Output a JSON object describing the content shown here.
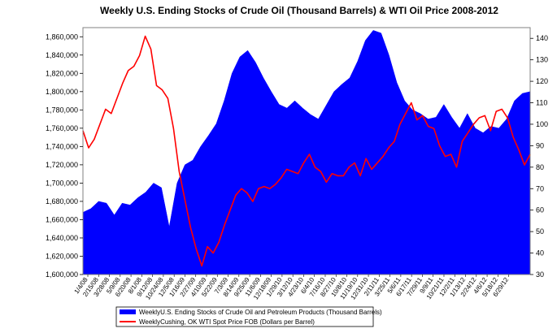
{
  "chart_data": {
    "type": "area+line",
    "title": "Weekly U.S. Ending Stocks of Crude Oil  (Thousand Barrels) & WTI Oil Price 2008-2012",
    "left_axis": {
      "min": 1600000,
      "max": 1870000,
      "ticks": [
        1600000,
        1620000,
        1640000,
        1660000,
        1680000,
        1700000,
        1720000,
        1740000,
        1760000,
        1780000,
        1800000,
        1820000,
        1840000,
        1860000
      ],
      "tick_labels": [
        "1,600,000",
        "1,620,000",
        "1,640,000",
        "1,660,000",
        "1,680,000",
        "1,700,000",
        "1,720,000",
        "1,740,000",
        "1,760,000",
        "1,780,000",
        "1,800,000",
        "1,820,000",
        "1,840,000",
        "1,860,000"
      ]
    },
    "right_axis": {
      "min": 30,
      "max": 145,
      "ticks": [
        30,
        40,
        50,
        60,
        70,
        80,
        90,
        100,
        110,
        120,
        130,
        140
      ],
      "tick_labels": [
        "30",
        "40",
        "50",
        "60",
        "70",
        "80",
        "90",
        "100",
        "110",
        "120",
        "130",
        "140"
      ]
    },
    "x_labels": [
      "1/4/08",
      "2/15/08",
      "3/28/08",
      "5/9/08",
      "6/20/08",
      "8/1/08",
      "9/12/08",
      "10/24/08",
      "12/5/08",
      "1/16/09",
      "2/27/09",
      "4/10/09",
      "5/22/09",
      "7/3/09",
      "8/14/09",
      "9/25/09",
      "11/6/09",
      "12/18/09",
      "1/29/10",
      "3/12/10",
      "4/23/10",
      "6/4/10",
      "7/16/10",
      "8/27/10",
      "10/8/10",
      "11/19/10",
      "12/31/10",
      "2/11/11",
      "3/25/11",
      "5/6/11",
      "6/17/11",
      "7/29/11",
      "9/9/11",
      "10/21/11",
      "12/2/11",
      "1/13/12",
      "2/24/12",
      "4/6/12",
      "5/18/12",
      "6/29/12"
    ],
    "series": [
      {
        "name": "WeeklyU.S. Ending Stocks of Crude Oil and Petroleum Products  (Thousand Barrels)",
        "type": "area",
        "axis": "left",
        "color": "#0000ff",
        "values": [
          1668000,
          1672000,
          1680000,
          1678000,
          1665000,
          1678000,
          1676000,
          1684000,
          1690000,
          1700000,
          1695000,
          1652000,
          1700000,
          1720000,
          1725000,
          1740000,
          1752000,
          1765000,
          1790000,
          1820000,
          1838000,
          1845000,
          1832000,
          1815000,
          1800000,
          1786000,
          1782000,
          1790000,
          1782000,
          1775000,
          1770000,
          1785000,
          1800000,
          1808000,
          1815000,
          1833000,
          1856000,
          1867000,
          1864000,
          1840000,
          1810000,
          1790000,
          1780000,
          1776000,
          1770000,
          1772000,
          1786000,
          1772000,
          1760000,
          1776000,
          1760000,
          1755000,
          1762000,
          1760000,
          1770000,
          1790000,
          1798000,
          1800000
        ]
      },
      {
        "name": "WeeklyCushing, OK WTI Spot Price FOB  (Dollars per Barrel)",
        "type": "line",
        "axis": "right",
        "color": "#ff0000",
        "values": [
          97,
          89,
          93,
          100,
          107,
          105,
          112,
          119,
          125,
          127,
          132,
          141,
          135,
          118,
          116,
          112,
          98,
          78,
          65,
          52,
          42,
          34,
          43,
          40,
          45,
          53,
          60,
          67,
          70,
          68,
          64,
          70,
          71,
          70,
          72,
          75,
          79,
          78,
          77,
          82,
          86,
          80,
          78,
          73,
          77,
          76,
          76,
          80,
          82,
          76,
          84,
          79,
          82,
          85,
          89,
          92,
          100,
          105,
          110,
          102,
          104,
          99,
          98,
          90,
          85,
          86,
          80,
          92,
          96,
          100,
          103,
          104,
          97,
          106,
          107,
          103,
          94,
          88,
          81,
          86
        ]
      }
    ]
  }
}
